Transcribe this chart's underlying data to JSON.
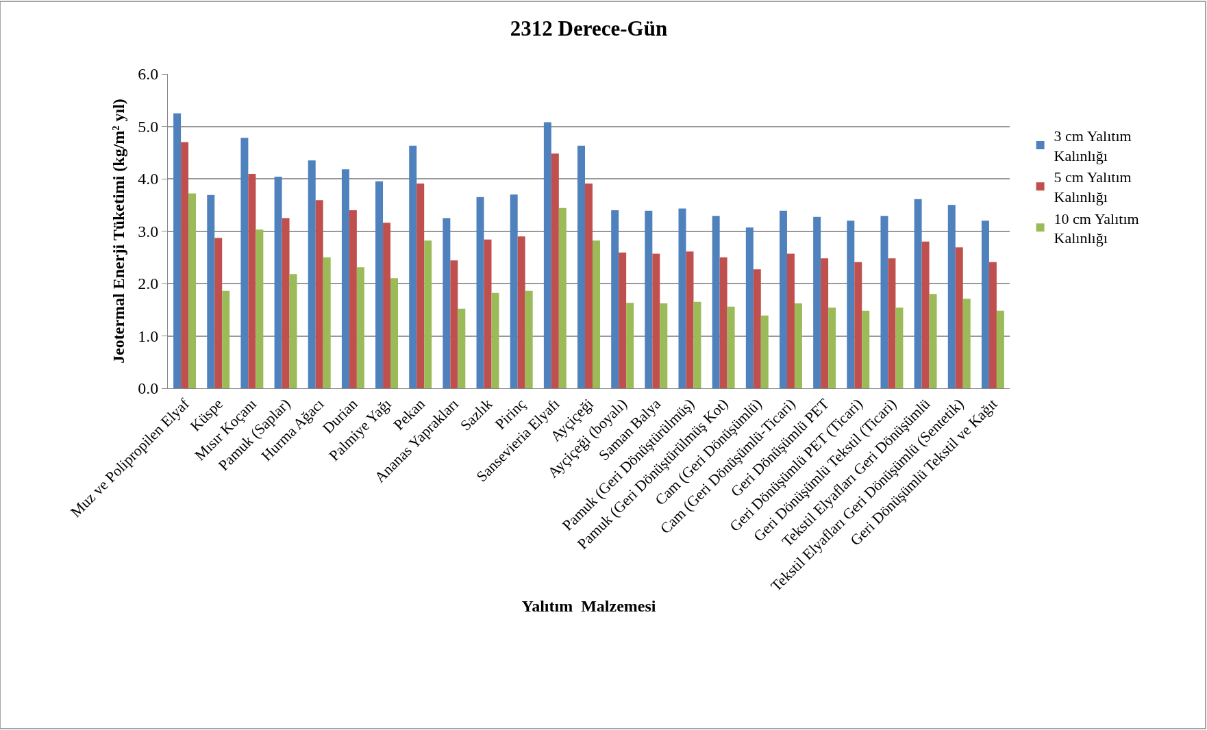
{
  "chart_data": {
    "type": "bar",
    "title": "2312 Derece-Gün",
    "xlabel": "Yalıtım  Malzemesi",
    "ylabel": "Jeotermal Enerji Tüketimi (kg/m² yıl)",
    "categories": [
      "Muz ve Polipropilen Elyaf",
      "Küspe",
      "Mısır Koçanı",
      "Pamuk (Saplar)",
      "Hurma Ağacı",
      "Durian",
      "Palmiye Yağı",
      "Pekan",
      "Ananas Yaprakları",
      "Sazlık",
      "Pirinç",
      "Sansevieria Elyafı",
      "Ayçiçeği",
      "Ayçiçeği (boyalı)",
      "Saman Balya",
      "Pamuk (Geri Dönüştürülmüş)",
      "Pamuk (Geri Dönüştürülmüş Kot)",
      "Cam (Geri Dönüşümlü)",
      "Cam (Geri Dönüşümlü-Ticari)",
      "Geri Dönüşümlü PET",
      "Geri Dönüşümlü PET (Ticari)",
      "Geri Dönüşümlü Tekstil (Ticari)",
      "Tekstil Elyafları Geri Dönüşümlü",
      "Tekstil Elyafları Geri Dönüşümlü (Sentetik)",
      "Geri Dönüşümlü Tekstil ve Kağıt"
    ],
    "series": [
      {
        "name": "3 cm Yalıtım Kalınlığı",
        "color": "#4f81bd",
        "values": [
          5.25,
          3.69,
          4.78,
          4.04,
          4.35,
          4.18,
          3.95,
          4.63,
          3.25,
          3.65,
          3.7,
          5.08,
          4.63,
          3.4,
          3.39,
          3.43,
          3.29,
          3.07,
          3.39,
          3.27,
          3.2,
          3.29,
          3.61,
          3.5,
          3.2
        ]
      },
      {
        "name": "5 cm Yalıtım Kalınlığı",
        "color": "#c0504d",
        "values": [
          4.7,
          2.87,
          4.09,
          3.25,
          3.59,
          3.4,
          3.16,
          3.91,
          2.44,
          2.84,
          2.9,
          4.48,
          3.91,
          2.59,
          2.57,
          2.61,
          2.5,
          2.27,
          2.57,
          2.48,
          2.41,
          2.48,
          2.8,
          2.69,
          2.41
        ]
      },
      {
        "name": "10 cm Yalıtım Kalınlığı",
        "color": "#9bbb59",
        "values": [
          3.72,
          1.86,
          3.03,
          2.18,
          2.5,
          2.31,
          2.1,
          2.82,
          1.52,
          1.82,
          1.86,
          3.44,
          2.82,
          1.63,
          1.62,
          1.65,
          1.56,
          1.39,
          1.62,
          1.54,
          1.48,
          1.54,
          1.8,
          1.71,
          1.48
        ]
      }
    ],
    "ylim": [
      0,
      6
    ],
    "yticks": [
      {
        "value": 0,
        "label": "0.0"
      },
      {
        "value": 1,
        "label": "1.0"
      },
      {
        "value": 2,
        "label": "2.0"
      },
      {
        "value": 3,
        "label": "3.0"
      },
      {
        "value": 4,
        "label": "4.0"
      },
      {
        "value": 5,
        "label": "5.0"
      },
      {
        "value": 6,
        "label": "6.0"
      }
    ],
    "grid": "y",
    "legend": "right"
  }
}
